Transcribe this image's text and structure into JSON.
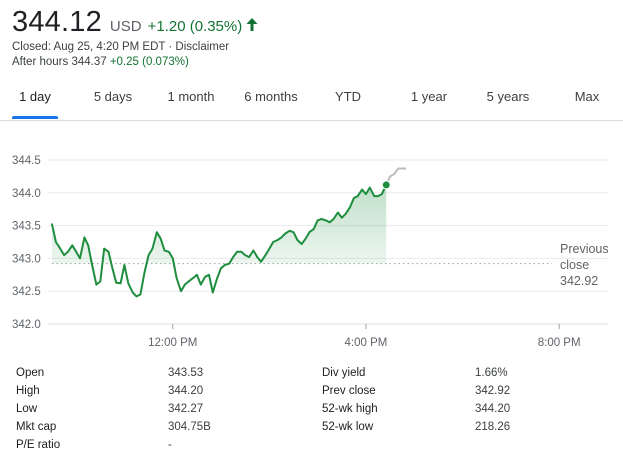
{
  "quote": {
    "price": "344.12",
    "currency": "USD",
    "change": "+1.20 (0.35%)",
    "closed_text": "Closed: Aug 25, 4:20 PM EDT · Disclaimer",
    "after_hours_label": "After hours 344.37",
    "after_hours_change": "+0.25 (0.073%)",
    "up_color": "#137333",
    "icon": "arrow-up-icon"
  },
  "tabs": [
    {
      "label": "1 day",
      "active": true
    },
    {
      "label": "5 days"
    },
    {
      "label": "1 month"
    },
    {
      "label": "6 months"
    },
    {
      "label": "YTD"
    },
    {
      "label": "1 year"
    },
    {
      "label": "5 years"
    },
    {
      "label": "Max"
    }
  ],
  "chart_data": {
    "type": "line",
    "y_ticks": [
      "344.5",
      "344.0",
      "343.5",
      "343.0",
      "342.5",
      "342.0"
    ],
    "x_ticks": [
      "12:00 PM",
      "4:00 PM",
      "8:00 PM"
    ],
    "ylim": [
      342.0,
      344.5
    ],
    "x_unit": "hours since 9:30 AM",
    "xlim": [
      0,
      12
    ],
    "previous_close": {
      "label_line1": "Previous",
      "label_line2": "close",
      "value": "342.92",
      "y": 342.92
    },
    "line_color": "#1e8e3e",
    "after_hours_color": "#bdbdbd",
    "series": [
      {
        "name": "Price",
        "points": [
          [
            0.0,
            343.52
          ],
          [
            0.08,
            343.25
          ],
          [
            0.17,
            343.15
          ],
          [
            0.25,
            343.05
          ],
          [
            0.33,
            343.1
          ],
          [
            0.42,
            343.2
          ],
          [
            0.5,
            343.1
          ],
          [
            0.58,
            343.0
          ],
          [
            0.67,
            343.32
          ],
          [
            0.75,
            343.2
          ],
          [
            0.83,
            342.9
          ],
          [
            0.92,
            342.6
          ],
          [
            1.0,
            342.65
          ],
          [
            1.08,
            343.15
          ],
          [
            1.17,
            343.1
          ],
          [
            1.25,
            342.85
          ],
          [
            1.33,
            342.63
          ],
          [
            1.42,
            342.62
          ],
          [
            1.5,
            342.9
          ],
          [
            1.58,
            342.62
          ],
          [
            1.67,
            342.48
          ],
          [
            1.75,
            342.42
          ],
          [
            1.83,
            342.45
          ],
          [
            1.92,
            342.8
          ],
          [
            2.0,
            343.05
          ],
          [
            2.08,
            343.15
          ],
          [
            2.17,
            343.4
          ],
          [
            2.25,
            343.3
          ],
          [
            2.33,
            343.12
          ],
          [
            2.42,
            343.1
          ],
          [
            2.5,
            343.0
          ],
          [
            2.58,
            342.7
          ],
          [
            2.67,
            342.5
          ],
          [
            2.75,
            342.6
          ],
          [
            2.83,
            342.65
          ],
          [
            2.92,
            342.7
          ],
          [
            3.0,
            342.75
          ],
          [
            3.08,
            342.6
          ],
          [
            3.17,
            342.72
          ],
          [
            3.25,
            342.75
          ],
          [
            3.33,
            342.48
          ],
          [
            3.42,
            342.7
          ],
          [
            3.5,
            342.85
          ],
          [
            3.58,
            342.9
          ],
          [
            3.67,
            342.92
          ],
          [
            3.75,
            343.02
          ],
          [
            3.83,
            343.1
          ],
          [
            3.92,
            343.1
          ],
          [
            4.0,
            343.05
          ],
          [
            4.08,
            343.02
          ],
          [
            4.17,
            343.12
          ],
          [
            4.25,
            343.02
          ],
          [
            4.33,
            342.95
          ],
          [
            4.42,
            343.05
          ],
          [
            4.5,
            343.15
          ],
          [
            4.58,
            343.25
          ],
          [
            4.67,
            343.28
          ],
          [
            4.75,
            343.32
          ],
          [
            4.83,
            343.38
          ],
          [
            4.92,
            343.42
          ],
          [
            5.0,
            343.4
          ],
          [
            5.08,
            343.28
          ],
          [
            5.17,
            343.22
          ],
          [
            5.25,
            343.3
          ],
          [
            5.33,
            343.4
          ],
          [
            5.42,
            343.45
          ],
          [
            5.5,
            343.58
          ],
          [
            5.58,
            343.6
          ],
          [
            5.67,
            343.58
          ],
          [
            5.75,
            343.55
          ],
          [
            5.83,
            343.6
          ],
          [
            5.92,
            343.7
          ],
          [
            6.0,
            343.62
          ],
          [
            6.08,
            343.68
          ],
          [
            6.17,
            343.78
          ],
          [
            6.25,
            343.92
          ],
          [
            6.33,
            343.95
          ],
          [
            6.42,
            344.05
          ],
          [
            6.5,
            343.98
          ],
          [
            6.58,
            344.08
          ],
          [
            6.67,
            343.95
          ],
          [
            6.75,
            343.95
          ],
          [
            6.83,
            343.98
          ],
          [
            6.92,
            344.12
          ]
        ]
      },
      {
        "name": "After hours",
        "points": [
          [
            6.92,
            344.12
          ],
          [
            7.0,
            344.25
          ],
          [
            7.08,
            344.28
          ],
          [
            7.17,
            344.37
          ],
          [
            7.33,
            344.37
          ]
        ]
      }
    ]
  },
  "stats": {
    "left": [
      {
        "label": "Open",
        "value": "343.53"
      },
      {
        "label": "High",
        "value": "344.20"
      },
      {
        "label": "Low",
        "value": "342.27"
      },
      {
        "label": "Mkt cap",
        "value": "304.75B"
      },
      {
        "label": "P/E ratio",
        "value": "-"
      }
    ],
    "right": [
      {
        "label": "Div yield",
        "value": "1.66%"
      },
      {
        "label": "Prev close",
        "value": "342.92"
      },
      {
        "label": "52-wk high",
        "value": "344.20"
      },
      {
        "label": "52-wk low",
        "value": "218.26"
      }
    ]
  }
}
